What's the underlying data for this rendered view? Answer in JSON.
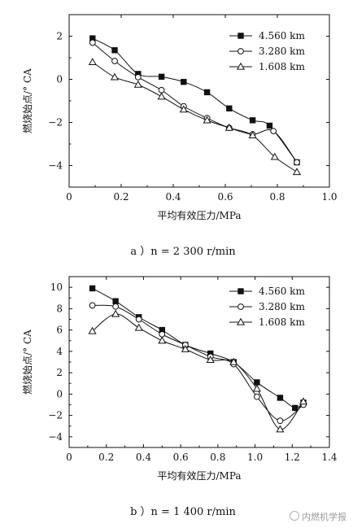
{
  "chart_data": [
    {
      "type": "line",
      "xlabel": "平均有效压力/MPa",
      "ylabel": "燃烧始点/° CA",
      "xlim": [
        0,
        1.0
      ],
      "ylim": [
        -5,
        3
      ],
      "xticks": [
        "0",
        "0.2",
        "0.4",
        "0.6",
        "0.8",
        "1.0"
      ],
      "yticks": [
        "2",
        "0",
        "−2",
        "−4"
      ],
      "caption": "a ）n = 2 300 r/min",
      "legend_position": "top-right",
      "series": [
        {
          "name": "4.560 km",
          "marker": "filled-square",
          "x": [
            0.09,
            0.175,
            0.265,
            0.355,
            0.44,
            0.53,
            0.615,
            0.705,
            0.77,
            0.875
          ],
          "y": [
            1.9,
            1.35,
            0.25,
            0.12,
            -0.12,
            -0.6,
            -1.35,
            -1.9,
            -2.15,
            -3.85
          ]
        },
        {
          "name": "3.280 km",
          "marker": "open-circle",
          "x": [
            0.09,
            0.175,
            0.265,
            0.355,
            0.44,
            0.53,
            0.615,
            0.705,
            0.785,
            0.875
          ],
          "y": [
            1.7,
            0.85,
            0.1,
            -0.5,
            -1.25,
            -1.8,
            -2.25,
            -2.55,
            -2.4,
            -3.85
          ]
        },
        {
          "name": "1.608 km",
          "marker": "open-triangle",
          "x": [
            0.09,
            0.175,
            0.265,
            0.355,
            0.44,
            0.53,
            0.615,
            0.705,
            0.79,
            0.875
          ],
          "y": [
            0.8,
            0.1,
            -0.25,
            -0.8,
            -1.4,
            -1.9,
            -2.25,
            -2.6,
            -3.6,
            -4.3
          ]
        }
      ]
    },
    {
      "type": "line",
      "xlabel": "平均有效压力/MPa",
      "ylabel": "燃烧始点/° CA",
      "xlim": [
        0,
        1.4
      ],
      "ylim": [
        -5,
        11
      ],
      "xticks": [
        "0",
        "0.2",
        "0.4",
        "0.6",
        "0.8",
        "1.0",
        "1.2",
        "1.4"
      ],
      "yticks": [
        "10",
        "8",
        "6",
        "4",
        "2",
        "0",
        "−2",
        "−4"
      ],
      "caption": "b ）n = 1 400 r/min",
      "legend_position": "top-right",
      "series": [
        {
          "name": "4.560 km",
          "marker": "filled-square",
          "x": [
            0.125,
            0.25,
            0.375,
            0.5,
            0.625,
            0.76,
            0.885,
            1.01,
            1.135,
            1.215,
            1.26
          ],
          "y": [
            9.9,
            8.7,
            7.2,
            6.0,
            4.6,
            3.8,
            3.0,
            1.1,
            -0.35,
            -1.3,
            -0.8
          ]
        },
        {
          "name": "3.280 km",
          "marker": "open-circle",
          "x": [
            0.125,
            0.25,
            0.375,
            0.5,
            0.625,
            0.76,
            0.885,
            1.01,
            1.135,
            1.26
          ],
          "y": [
            8.3,
            8.2,
            7.0,
            5.6,
            4.6,
            3.5,
            2.8,
            -0.25,
            -2.5,
            -1.0
          ]
        },
        {
          "name": "1.608 km",
          "marker": "open-triangle",
          "x": [
            0.125,
            0.25,
            0.375,
            0.5,
            0.625,
            0.76,
            0.885,
            1.01,
            1.135,
            1.26
          ],
          "y": [
            5.9,
            7.5,
            6.2,
            5.0,
            4.2,
            3.2,
            3.0,
            0.5,
            -3.3,
            -0.7
          ]
        }
      ]
    }
  ],
  "watermark": "内燃机学报"
}
